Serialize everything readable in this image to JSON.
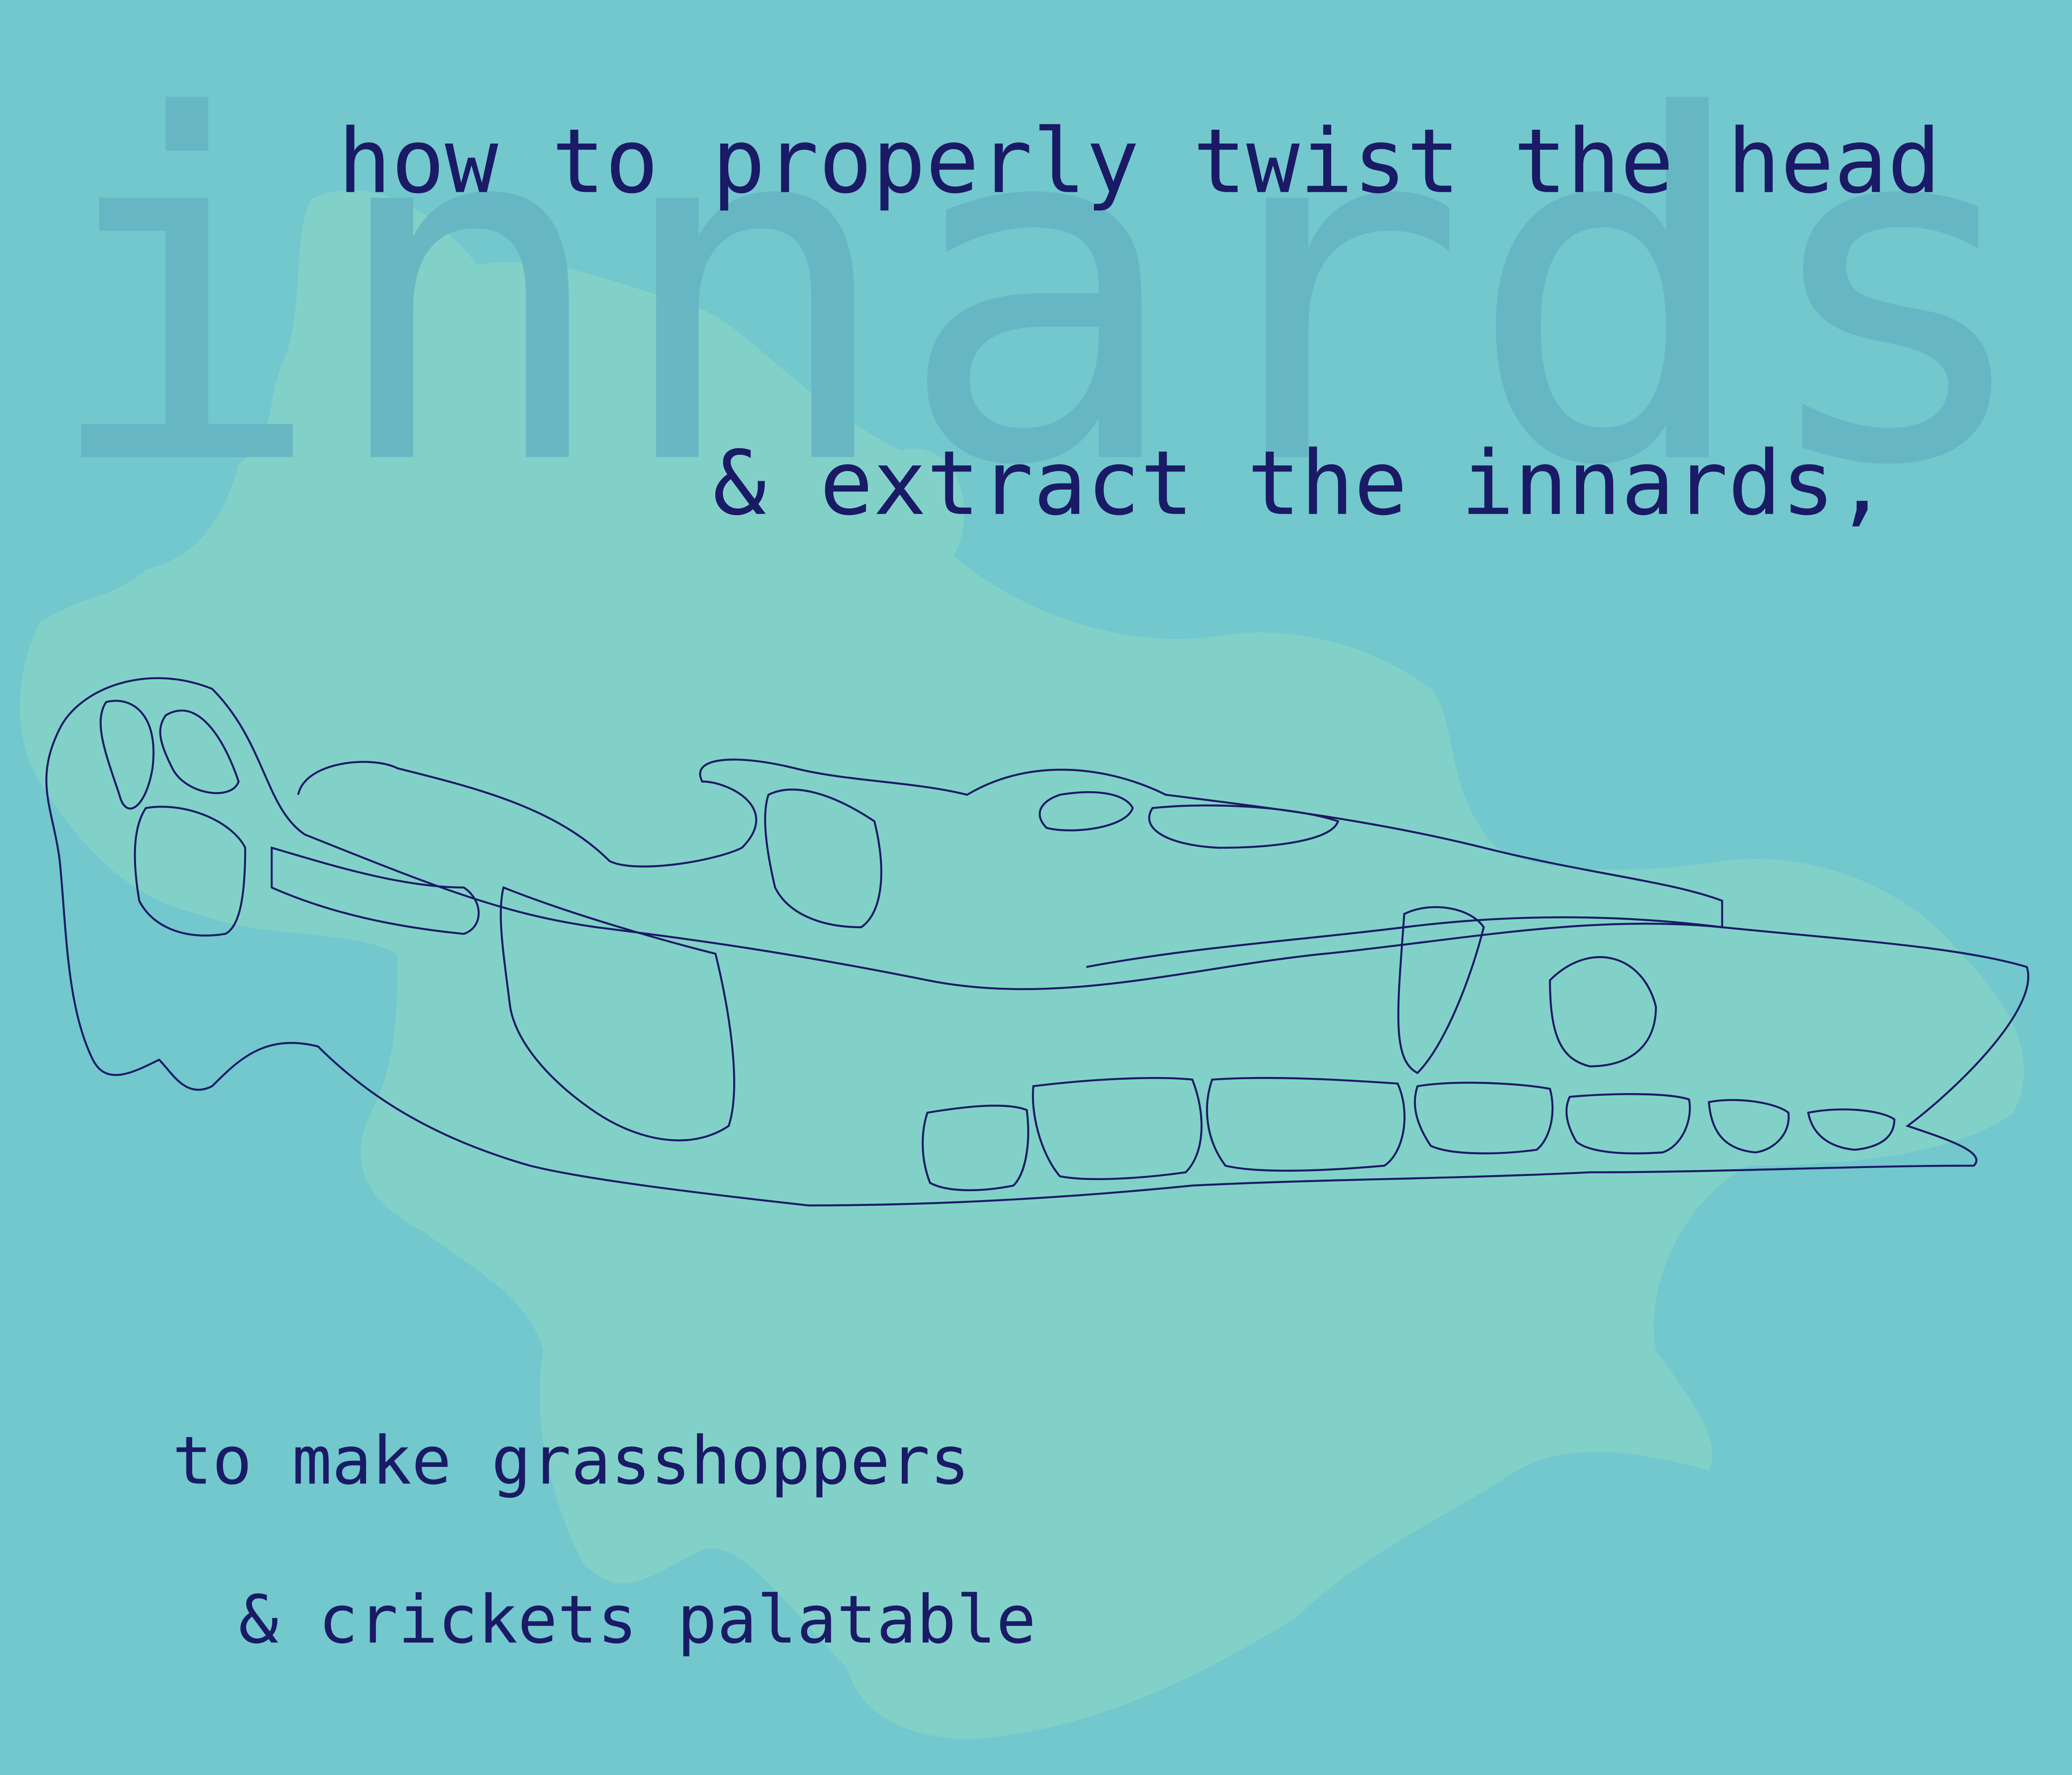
{
  "background_word": "innards",
  "heading": {
    "line1": "how to properly twist the head",
    "line2": "& extract the innards,"
  },
  "footer": {
    "line1": "to make grasshoppers",
    "line2": "& crickets palatable"
  }
}
